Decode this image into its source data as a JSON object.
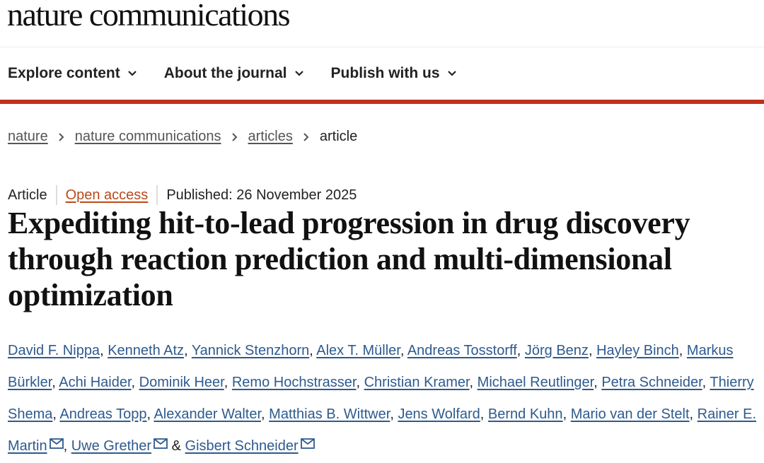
{
  "brand": {
    "name": "nature communications"
  },
  "nav": {
    "items": [
      {
        "label": "Explore content"
      },
      {
        "label": "About the journal"
      },
      {
        "label": "Publish with us"
      }
    ]
  },
  "breadcrumb": {
    "items": [
      "nature",
      "nature communications",
      "articles"
    ],
    "current": "article"
  },
  "meta": {
    "type": "Article",
    "access": "Open access",
    "published": "Published: 26 November 2025"
  },
  "title": "Expediting hit-to-lead progression in drug discovery through reaction prediction and multi-dimensional optimization",
  "authors": [
    {
      "name": "David F. Nippa"
    },
    {
      "name": "Kenneth Atz"
    },
    {
      "name": "Yannick Stenzhorn"
    },
    {
      "name": "Alex T. Müller"
    },
    {
      "name": "Andreas Tosstorff"
    },
    {
      "name": "Jörg Benz"
    },
    {
      "name": "Hayley Binch"
    },
    {
      "name": "Markus Bürkler"
    },
    {
      "name": "Achi Haider"
    },
    {
      "name": "Dominik Heer"
    },
    {
      "name": "Remo Hochstrasser"
    },
    {
      "name": "Christian Kramer"
    },
    {
      "name": "Michael Reutlinger"
    },
    {
      "name": "Petra Schneider"
    },
    {
      "name": "Thierry Shema"
    },
    {
      "name": "Andreas Topp"
    },
    {
      "name": "Alexander Walter"
    },
    {
      "name": "Matthias B. Wittwer"
    },
    {
      "name": "Jens Wolfard"
    },
    {
      "name": "Bernd Kuhn"
    },
    {
      "name": "Mario van der Stelt"
    },
    {
      "name": "Rainer E. Martin",
      "email": true
    },
    {
      "name": "Uwe Grether",
      "email": true
    },
    {
      "name": "Gisbert Schneider",
      "email": true
    }
  ],
  "colors": {
    "accent": "#c0301b",
    "link": "#2e5a8e",
    "open_access": "#b84a1b"
  }
}
